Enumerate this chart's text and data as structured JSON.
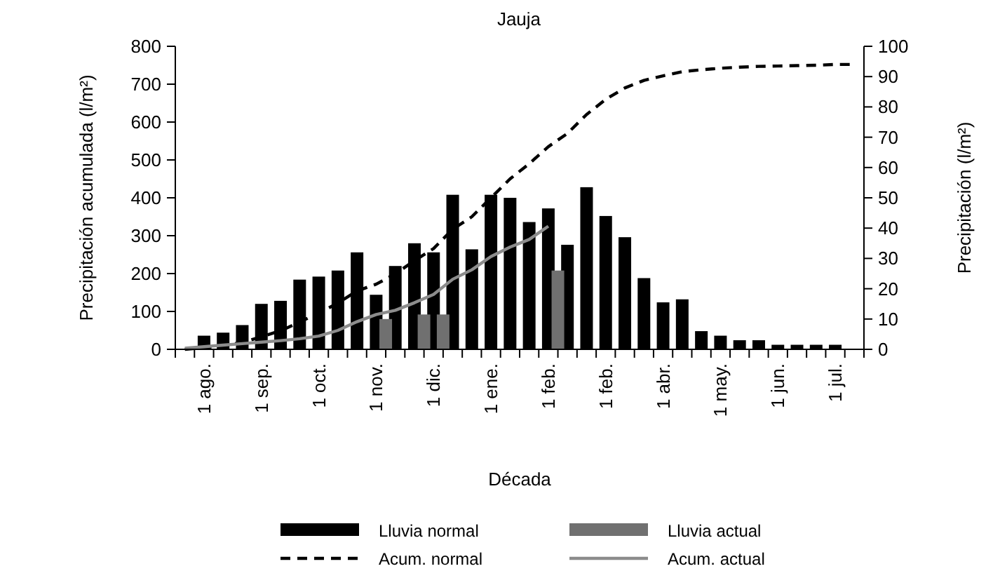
{
  "chart_data": {
    "type": "bar",
    "title": "Jauja",
    "xlabel": "Década",
    "ylabel": "Precipitación acumulada (l/m²)",
    "y2label": "Precipitación (l/m²)",
    "categories": [
      null,
      "1 ago.",
      null,
      null,
      "1 sep.",
      null,
      null,
      "1 oct.",
      null,
      null,
      "1 nov.",
      null,
      null,
      "1 dic.",
      null,
      null,
      "1 ene.",
      null,
      null,
      "1 feb.",
      null,
      null,
      "1 feb.",
      null,
      null,
      "1 abr.",
      null,
      null,
      "1 may.",
      null,
      null,
      "1 jun.",
      null,
      null,
      "1 jul.",
      null
    ],
    "ylim": [
      0,
      800
    ],
    "yticks": [
      0,
      100,
      200,
      300,
      400,
      500,
      600,
      700,
      800
    ],
    "y2lim": [
      0,
      100
    ],
    "y2ticks": [
      0,
      10,
      20,
      30,
      40,
      50,
      60,
      70,
      80,
      90,
      100
    ],
    "grid": false,
    "legend": "bottom",
    "series": [
      {
        "name": "Lluvia normal",
        "axis": "y2",
        "color": "#000000",
        "values": [
          null,
          4.5,
          5.5,
          8,
          15,
          16,
          23,
          24,
          26,
          32,
          18,
          27.5,
          35,
          32,
          51,
          33,
          51,
          50,
          42,
          46.5,
          34.5,
          53.5,
          44,
          37,
          23.5,
          15.5,
          16.5,
          6,
          4.5,
          3,
          3,
          1.5,
          1.5,
          1.5,
          1.5,
          null
        ]
      },
      {
        "name": "Lluvia actual",
        "axis": "y2",
        "color": "#707070",
        "values": [
          null,
          null,
          null,
          null,
          null,
          null,
          null,
          null,
          null,
          null,
          10,
          null,
          11.5,
          11.5,
          null,
          null,
          null,
          null,
          null,
          26,
          null,
          null,
          null,
          null,
          null,
          null,
          null,
          null,
          null,
          null,
          null,
          null,
          null,
          null,
          null,
          null
        ]
      },
      {
        "name": "Acum. normal",
        "type": "line",
        "axis": "y",
        "line_style": "dashed",
        "color": "#000000",
        "values": [
          0,
          4,
          10,
          18,
          33,
          49,
          72,
          96,
          122,
          154,
          172,
          199,
          234,
          266,
          317,
          350,
          400,
          450,
          490,
          535,
          570,
          620,
          660,
          690,
          710,
          722,
          733,
          738,
          742,
          745,
          747,
          748,
          749,
          750,
          752,
          752
        ]
      },
      {
        "name": "Acum. actual",
        "type": "line",
        "axis": "y",
        "line_style": "solid",
        "color": "#8c8c8c",
        "values": [
          3,
          7,
          11,
          15,
          19,
          23,
          28,
          35,
          50,
          73,
          92,
          103,
          123,
          145,
          185,
          210,
          245,
          270,
          290,
          325,
          null,
          null,
          null,
          null,
          null,
          null,
          null,
          null,
          null,
          null,
          null,
          null,
          null,
          null,
          null,
          null
        ]
      }
    ]
  }
}
